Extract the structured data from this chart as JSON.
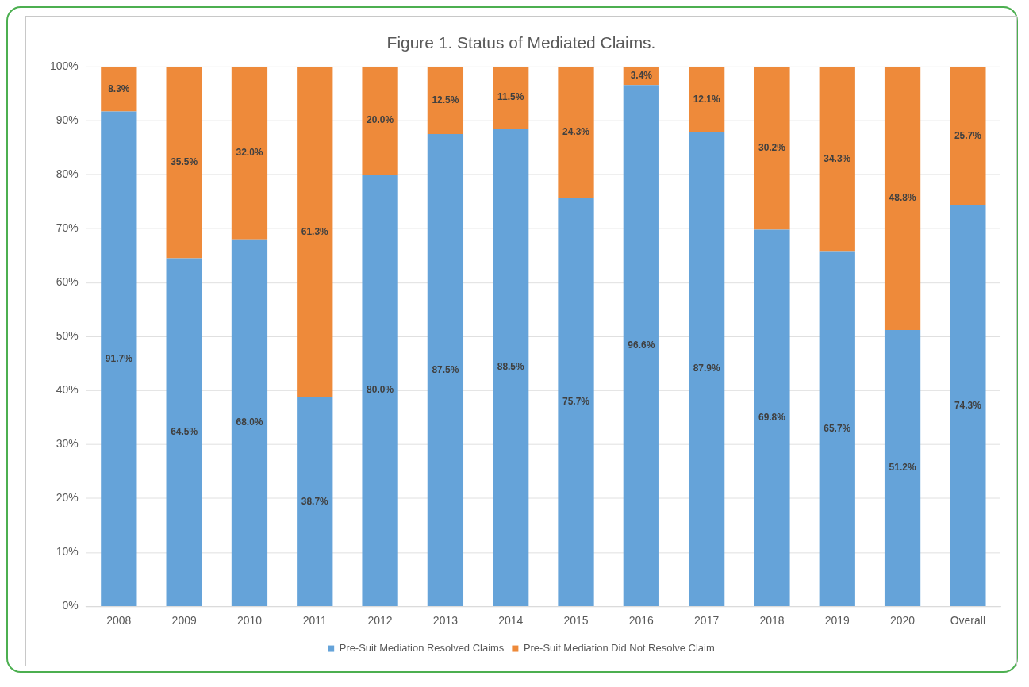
{
  "chart_data": {
    "type": "bar",
    "title": "Figure 1. Status of Mediated Claims.",
    "stacked": true,
    "categories": [
      "2008",
      "2009",
      "2010",
      "2011",
      "2012",
      "2013",
      "2014",
      "2015",
      "2016",
      "2017",
      "2018",
      "2019",
      "2020",
      "Overall"
    ],
    "series": [
      {
        "name": "Pre-Suit Mediation Resolved Claims",
        "color": "#65a3d9",
        "values": [
          91.7,
          64.5,
          68.0,
          38.7,
          80.0,
          87.5,
          88.5,
          75.7,
          96.6,
          87.9,
          69.8,
          65.7,
          51.2,
          74.3
        ],
        "value_labels": [
          "91.7%",
          "64.5%",
          "68.0%",
          "38.7%",
          "80.0%",
          "87.5%",
          "88.5%",
          "75.7%",
          "96.6%",
          "87.9%",
          "69.8%",
          "65.7%",
          "51.2%",
          "74.3%"
        ]
      },
      {
        "name": "Pre-Suit Mediation Did Not Resolve Claim",
        "color": "#ee8a3a",
        "values": [
          8.3,
          35.5,
          32.0,
          61.3,
          20.0,
          12.5,
          11.5,
          24.3,
          3.4,
          12.1,
          30.2,
          34.3,
          48.8,
          25.7
        ],
        "value_labels": [
          "8.3%",
          "35.5%",
          "32.0%",
          "61.3%",
          "20.0%",
          "12.5%",
          "11.5%",
          "24.3%",
          "3.4%",
          "12.1%",
          "30.2%",
          "34.3%",
          "48.8%",
          "25.7%"
        ]
      }
    ],
    "ylim": [
      0,
      100
    ],
    "yticks": [
      {
        "value": 0,
        "label": "0%"
      },
      {
        "value": 10,
        "label": "10%"
      },
      {
        "value": 20,
        "label": "20%"
      },
      {
        "value": 30,
        "label": "30%"
      },
      {
        "value": 40,
        "label": "40%"
      },
      {
        "value": 50,
        "label": "50%"
      },
      {
        "value": 60,
        "label": "60%"
      },
      {
        "value": 70,
        "label": "70%"
      },
      {
        "value": 80,
        "label": "80%"
      },
      {
        "value": 90,
        "label": "90%"
      },
      {
        "value": 100,
        "label": "100%"
      }
    ],
    "grid": "y",
    "legend": "bottom"
  }
}
